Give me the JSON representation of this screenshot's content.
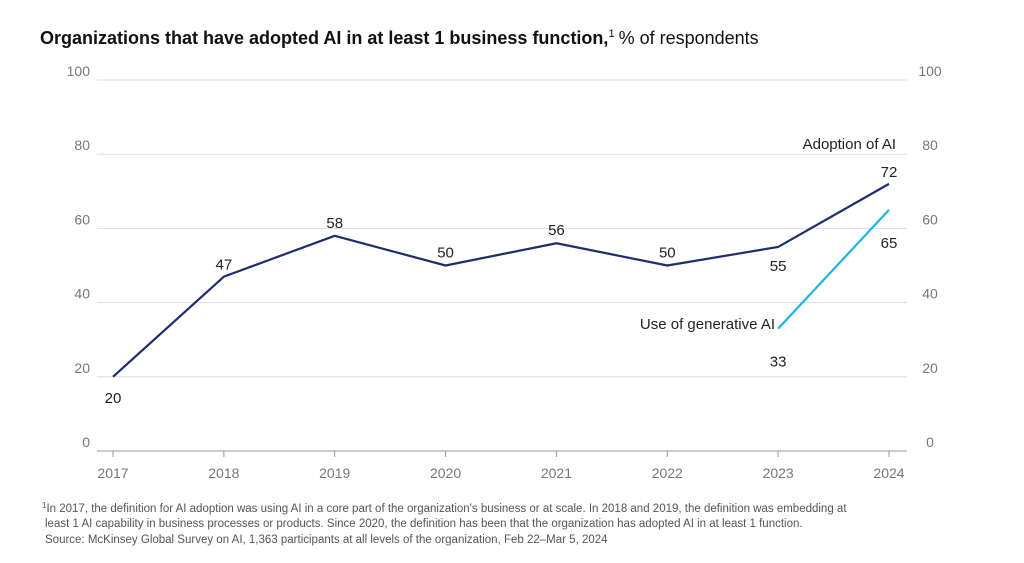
{
  "chart_data": {
    "type": "line",
    "title": "Organizations that have adopted AI in at least 1 business function,",
    "title_note_marker": "1",
    "subtitle": "% of respondents",
    "categories": [
      "2017",
      "2018",
      "2019",
      "2020",
      "2021",
      "2022",
      "2023",
      "2024"
    ],
    "series": [
      {
        "name": "Adoption of AI",
        "color": "#1f2d6e",
        "values": [
          20,
          47,
          58,
          50,
          56,
          50,
          55,
          72
        ]
      },
      {
        "name": "Use of generative AI",
        "color": "#1fb3e5",
        "values": [
          null,
          null,
          null,
          null,
          null,
          null,
          33,
          65
        ]
      }
    ],
    "ylim": [
      0,
      100
    ],
    "yticks": [
      0,
      20,
      40,
      60,
      80,
      100
    ],
    "y2lim": [
      0,
      100
    ],
    "y2ticks": [
      0,
      20,
      40,
      60,
      80,
      100
    ],
    "grid": true,
    "footnote_marker": "1",
    "footnote_lines": [
      "In 2017, the definition for AI adoption was using AI in a core part of the organization's business or at scale. In 2018 and 2019, the definition was embedding at",
      "least 1 AI capability in business processes or products. Since 2020, the definition has been that the organization has adopted AI in at least 1 function."
    ],
    "source": "Source: McKinsey Global Survey on AI, 1,363 participants at all levels of the organization, Feb 22–Mar 5, 2024"
  }
}
